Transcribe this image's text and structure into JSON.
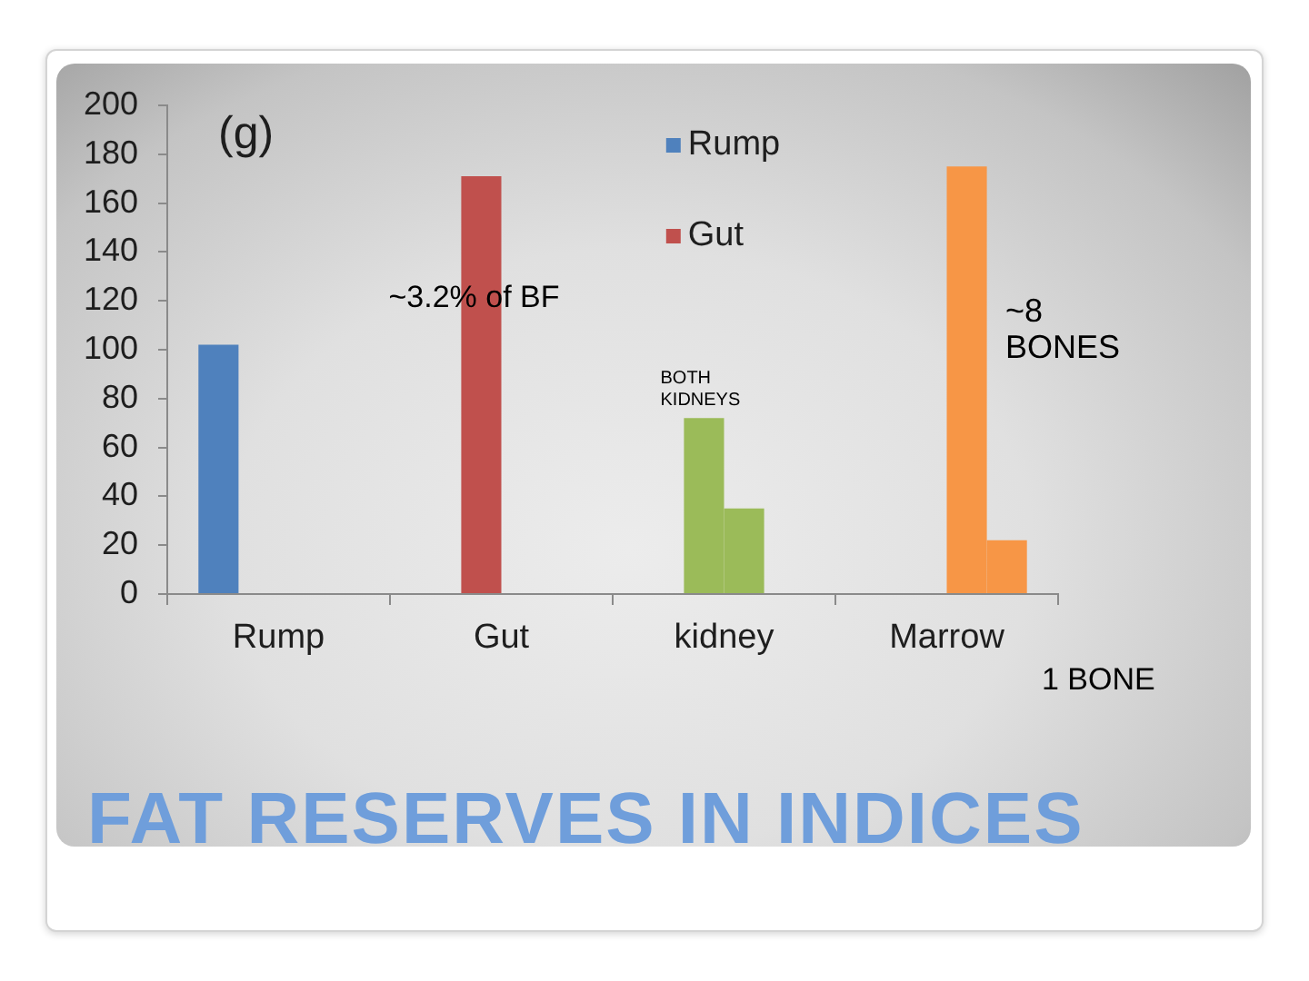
{
  "chart_data": {
    "type": "bar",
    "title": "FAT RESERVES IN INDICES",
    "ylabel": "(g)",
    "categories": [
      "Rump",
      "Gut",
      "kidney",
      "Marrow"
    ],
    "series": [
      {
        "name": "Rump",
        "color": "#4f81bd",
        "values": [
          102,
          null,
          null,
          null
        ]
      },
      {
        "name": "Gut",
        "color": "#c0504d",
        "colors": [
          "#c0504d",
          "#c0504d",
          "#9bbb59",
          "#c0504d"
        ],
        "values": [
          null,
          171,
          72,
          null
        ]
      },
      {
        "colors": [
          "#9bbb59",
          "#9bbb59",
          "#9bbb59",
          "#f79646"
        ],
        "values": [
          null,
          null,
          35,
          175
        ]
      },
      {
        "color": "#f79646",
        "values": [
          null,
          null,
          null,
          22
        ]
      }
    ],
    "ylim": [
      0,
      200
    ],
    "yticks": [
      0,
      20,
      40,
      60,
      80,
      100,
      120,
      140,
      160,
      180,
      200
    ],
    "grid": false,
    "legend": "top right",
    "annotations": [
      {
        "text": "~3.2% of BF",
        "x": "Gut",
        "y": 121
      },
      {
        "text": "BOTH KIDNEYS",
        "x": "kidney",
        "y": 72
      },
      "~8 BONES",
      "1 BONE"
    ]
  }
}
